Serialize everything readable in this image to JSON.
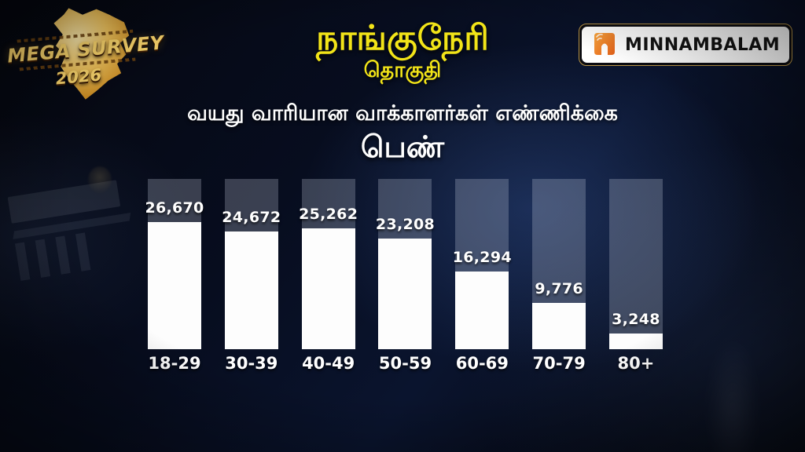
{
  "header": {
    "title": "நாங்குநேரி",
    "subtitle": "தொகுதி",
    "section_title": "வயது வாரியான வாக்காளர்கள் எண்ணிக்கை",
    "gender_label": "பெண்"
  },
  "logos": {
    "mega_survey": {
      "line1": "MEGA SURVEY",
      "line2": "2026"
    },
    "minnambalam": {
      "text": "MINNAMBALAM",
      "icon": "minnambalam-m-flame-icon"
    }
  },
  "chart_data": {
    "type": "bar",
    "title": "வயது வாரியான வாக்காளர்கள் எண்ணிக்கை — பெண்",
    "categories": [
      "18-29",
      "30-39",
      "40-49",
      "50-59",
      "60-69",
      "70-79",
      "80+"
    ],
    "values": [
      26670,
      24672,
      25262,
      23208,
      16294,
      9776,
      3248
    ],
    "value_labels": [
      "26,670",
      "24,672",
      "25,262",
      "23,208",
      "16,294",
      "9,776",
      "3,248"
    ],
    "xlabel": "",
    "ylabel": "",
    "ylim": [
      0,
      35700
    ],
    "grid": false,
    "legend": "none",
    "bar_color": "#fdfdfd",
    "track_color": "rgba(205,212,228,0.26)",
    "label_color": "#ffffff"
  },
  "colors": {
    "background": "#070d1f",
    "accent_yellow": "#f2e418",
    "logo_gold": "#e8b84b",
    "logo_orange": "#f07c23",
    "text_white": "#ffffff"
  }
}
